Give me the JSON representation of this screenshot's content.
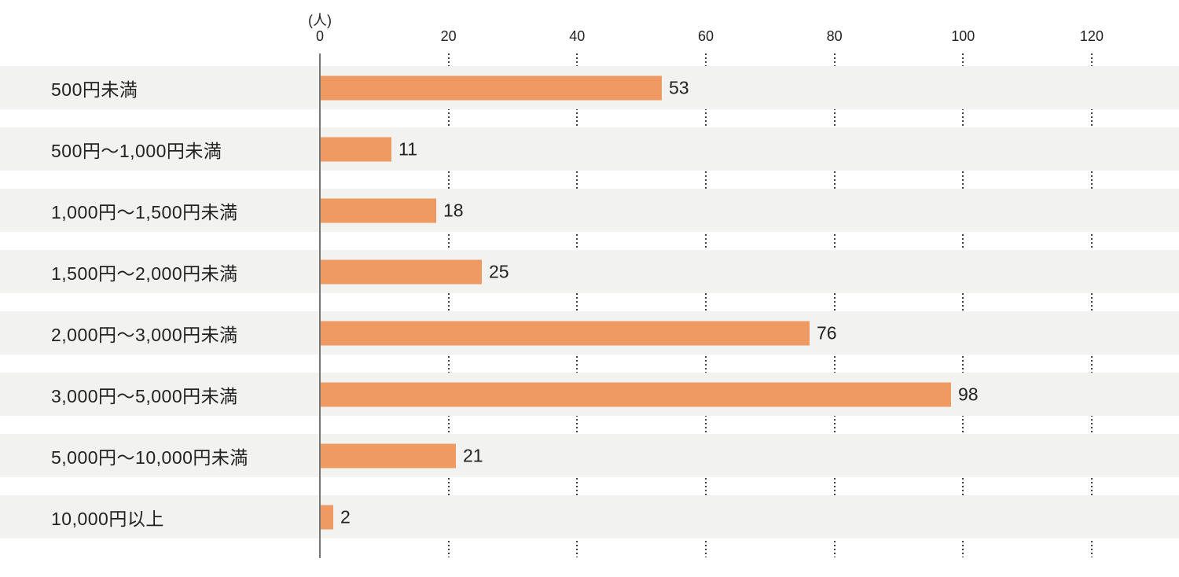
{
  "chart_data": {
    "type": "bar",
    "orientation": "horizontal",
    "title": "",
    "unit_label": "(人)",
    "xlabel": "",
    "ylabel": "",
    "categories": [
      "500円未満",
      "500円〜1,000円未満",
      "1,000円〜1,500円未満",
      "1,500円〜2,000円未満",
      "2,000円〜3,000円未満",
      "3,000円〜5,000円未満",
      "5,000円〜10,000円未満",
      "10,000円以上"
    ],
    "values": [
      53,
      11,
      18,
      25,
      76,
      98,
      21,
      2
    ],
    "x_ticks": [
      0,
      20,
      40,
      60,
      80,
      100,
      120
    ],
    "xlim": [
      0,
      133
    ],
    "grid": "dotted-vertical-between-rows",
    "legend": "none",
    "colors": {
      "bar": "#EF9A62",
      "row_band": "#F2F2F1",
      "axis_line": "#767676",
      "grid_dot": "#404040",
      "text": "#222222",
      "background": "#FFFFFF"
    }
  }
}
